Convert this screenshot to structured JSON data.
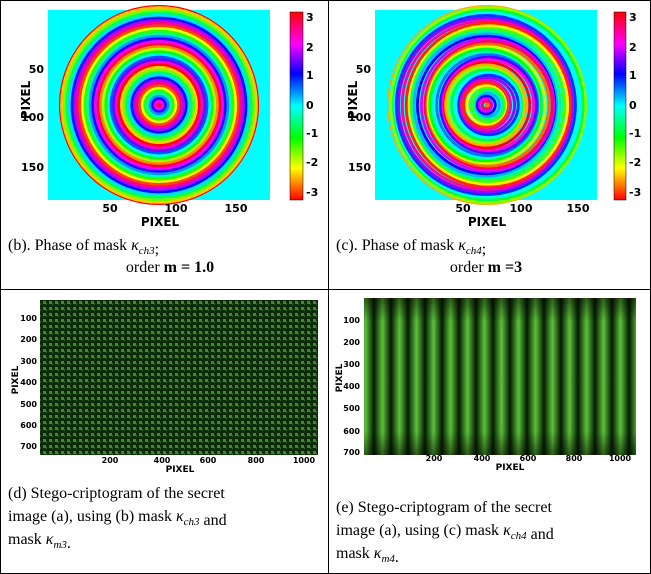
{
  "panels": [
    {
      "image": {
        "y_label": "PIXEL",
        "x_label": "PIXEL",
        "yticks": [
          50,
          100,
          150
        ],
        "xticks": [
          50,
          100,
          150
        ],
        "colorbar_ticks": [
          3,
          2,
          1,
          0,
          -1,
          -2,
          -3
        ]
      },
      "caption": [
        [
          {
            "text": "(b). Phase of mask "
          },
          {
            "symbol": "κ",
            "sub": "ch3"
          },
          {
            "text": ";"
          }
        ],
        [
          {
            "text": "order "
          },
          {
            "bold": "m = 1.0"
          }
        ]
      ]
    },
    {
      "image": {
        "y_label": "PIXEL",
        "x_label": "PIXEL",
        "yticks": [
          50,
          100,
          150
        ],
        "xticks": [
          50,
          100,
          150
        ],
        "colorbar_ticks": [
          3,
          2,
          1,
          0,
          -1,
          -2,
          -3
        ]
      },
      "caption": [
        [
          {
            "text": "(c). Phase of  mask "
          },
          {
            "symbol": "κ",
            "sub": "ch4"
          },
          {
            "text": ";"
          }
        ],
        [
          {
            "text": "order "
          },
          {
            "bold": "m =3"
          }
        ]
      ]
    },
    {
      "image": {
        "y_label": "PIXEL",
        "x_label": "PIXEL",
        "yticks": [
          100,
          200,
          300,
          400,
          500,
          600,
          700
        ],
        "xticks": [
          200,
          400,
          600,
          800,
          1000
        ]
      },
      "caption": [
        [
          {
            "text": "(d) Stego-criptogram of the secret"
          }
        ],
        [
          {
            "text": "image (a), using (b) mask "
          },
          {
            "symbol": "κ",
            "sub": "ch3"
          },
          {
            "text": " and"
          }
        ],
        [
          {
            "text": "mask "
          },
          {
            "symbol": "κ",
            "sub": "m3"
          },
          {
            "text": "."
          }
        ]
      ]
    },
    {
      "image": {
        "y_label": "PIXEL",
        "x_label": "PIXEL",
        "yticks": [
          100,
          200,
          300,
          400,
          500,
          600,
          700
        ],
        "xticks": [
          200,
          400,
          600,
          800,
          1000
        ]
      },
      "caption": [
        [
          {
            "text": "(e) Stego-criptogram of the secret"
          }
        ],
        [
          {
            "text": "image (a), using (c) mask "
          },
          {
            "symbol": "κ",
            "sub": "ch4"
          },
          {
            "text": " and"
          }
        ],
        [
          {
            "text": "mask "
          },
          {
            "symbol": "κ",
            "sub": "m4"
          },
          {
            "text": "."
          }
        ]
      ]
    }
  ]
}
